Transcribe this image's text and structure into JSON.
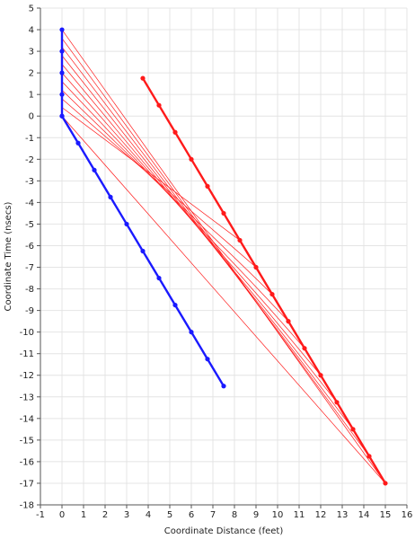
{
  "chart_data": {
    "type": "line",
    "title": "",
    "xlabel": "Coordinate Distance (feet)",
    "ylabel": "Coordinate Time (nsecs)",
    "xlim": [
      -1,
      16
    ],
    "ylim": [
      -18,
      5
    ],
    "xticks": [
      -1,
      0,
      1,
      2,
      3,
      4,
      5,
      6,
      7,
      8,
      9,
      10,
      11,
      12,
      13,
      14,
      15,
      16
    ],
    "yticks": [
      5,
      4,
      3,
      2,
      1,
      0,
      -1,
      -2,
      -3,
      -4,
      -5,
      -6,
      -7,
      -8,
      -9,
      -10,
      -11,
      -12,
      -13,
      -14,
      -15,
      -16,
      -17,
      -18
    ],
    "grid": true,
    "legend": "none",
    "colors": {
      "blue": "#1a1aff",
      "red": "#ff1a1a",
      "grid": "#e4e4e4"
    },
    "series": [
      {
        "color": "blue",
        "x": [
          0,
          0,
          0,
          0,
          0
        ],
        "y": [
          0,
          1,
          2,
          3,
          4
        ]
      },
      {
        "color": "blue",
        "x": [
          0,
          0.75,
          1.5,
          2.25,
          3.0,
          3.75,
          4.5,
          5.25,
          6.0,
          6.75,
          7.5
        ],
        "y": [
          0,
          -1.25,
          -2.5,
          -3.75,
          -5.0,
          -6.25,
          -7.5,
          -8.75,
          -10.0,
          -11.25,
          -12.5
        ]
      },
      {
        "color": "red",
        "x": [
          3.75,
          4.5,
          5.25,
          6.0,
          6.75,
          7.5,
          8.25,
          9.0,
          9.75,
          10.5,
          11.25,
          12.0,
          12.75,
          13.5,
          14.25,
          15.0
        ],
        "y": [
          1.75,
          0.5,
          -0.75,
          -2.0,
          -3.25,
          -4.5,
          -5.75,
          -7.0,
          -8.25,
          -9.5,
          -10.75,
          -12.0,
          -13.25,
          -14.5,
          -15.75,
          -17.0
        ]
      }
    ],
    "rays": {
      "color": "red",
      "from": [
        {
          "x": 0,
          "y": 4.0
        },
        {
          "x": 0,
          "y": 3.6
        },
        {
          "x": 0,
          "y": 3.2
        },
        {
          "x": 0,
          "y": 2.8
        },
        {
          "x": 0,
          "y": 2.4
        },
        {
          "x": 0,
          "y": 2.0
        },
        {
          "x": 0,
          "y": 1.6
        },
        {
          "x": 0,
          "y": 1.2
        },
        {
          "x": 0,
          "y": 0.8
        },
        {
          "x": 0,
          "y": 0.4
        },
        {
          "x": 0,
          "y": 0.0
        }
      ],
      "to": [
        {
          "x": 15.0,
          "y": -17.0
        },
        {
          "x": 14.25,
          "y": -15.75
        },
        {
          "x": 13.5,
          "y": -14.5
        },
        {
          "x": 12.75,
          "y": -13.25
        },
        {
          "x": 12.0,
          "y": -12.0
        },
        {
          "x": 11.25,
          "y": -10.75
        },
        {
          "x": 10.5,
          "y": -9.5
        },
        {
          "x": 9.75,
          "y": -8.25
        },
        {
          "x": 9.0,
          "y": -7.0
        },
        {
          "x": 8.25,
          "y": -5.75
        },
        {
          "x": 15.0,
          "y": -17.0
        }
      ]
    }
  }
}
